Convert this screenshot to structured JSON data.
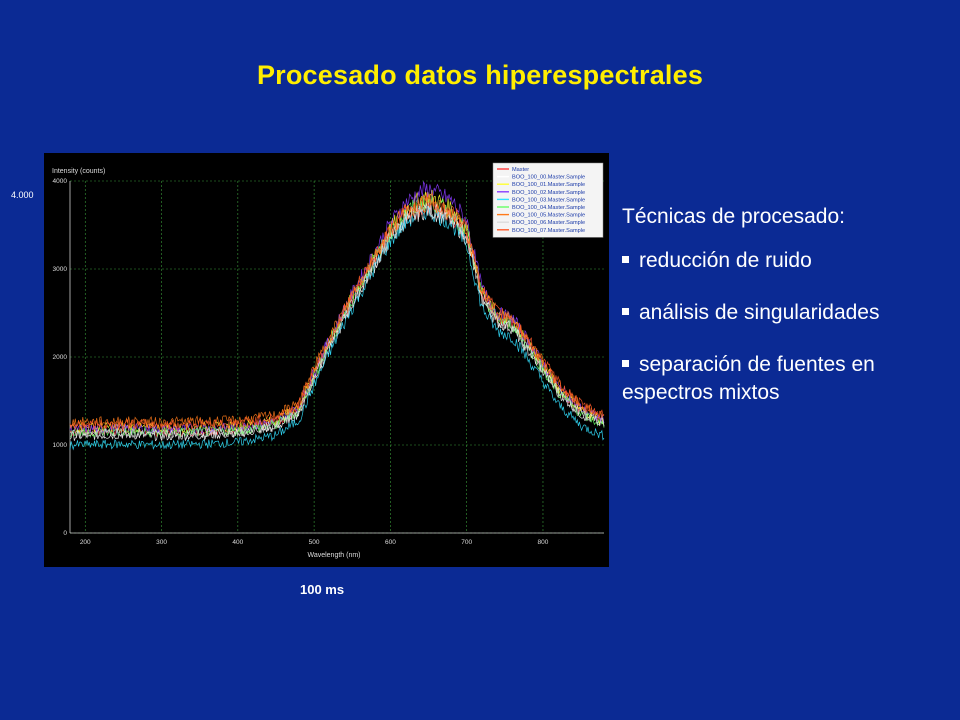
{
  "slide": {
    "title": "Procesado datos hiperespectrales",
    "ymark": "4.000",
    "caption": "100 ms",
    "bullets_heading": "Técnicas de procesado:",
    "bullets": [
      "reducción de ruido",
      "análisis de singularidades",
      "separación de fuentes en espectros mixtos"
    ],
    "colors": {
      "background": "#0b2a94",
      "title": "#ffee00",
      "text": "#ffffff"
    }
  },
  "chart_data": {
    "type": "line",
    "ylabel": "Intensity (counts)",
    "xlabel": "Wavelength (nm)",
    "xlim": [
      180,
      880
    ],
    "ylim": [
      0,
      4000
    ],
    "x_ticks": [
      200,
      300,
      400,
      500,
      600,
      700,
      800
    ],
    "y_ticks": [
      0,
      1000,
      2000,
      3000,
      4000
    ],
    "grid": true,
    "legend_position": "top-right",
    "x": [
      180,
      250,
      300,
      350,
      400,
      450,
      480,
      500,
      520,
      550,
      580,
      600,
      620,
      640,
      650,
      660,
      680,
      700,
      720,
      740,
      760,
      780,
      800,
      820,
      850,
      880
    ],
    "series": [
      {
        "name": "Master",
        "color": "#ff3b3b",
        "values": [
          1150,
          1170,
          1150,
          1160,
          1180,
          1250,
          1400,
          1800,
          2150,
          2650,
          3100,
          3400,
          3600,
          3700,
          3720,
          3680,
          3600,
          3400,
          2700,
          2450,
          2400,
          2150,
          1900,
          1650,
          1400,
          1280
        ]
      },
      {
        "name": "BOO_100_00.Master.Sample",
        "color": "#ffffff",
        "values": [
          1100,
          1120,
          1100,
          1110,
          1130,
          1200,
          1360,
          1750,
          2100,
          2600,
          3050,
          3350,
          3550,
          3650,
          3670,
          3630,
          3560,
          3350,
          2650,
          2400,
          2330,
          2080,
          1840,
          1600,
          1350,
          1230
        ]
      },
      {
        "name": "BOO_100_01.Master.Sample",
        "color": "#ffff33",
        "values": [
          1200,
          1200,
          1190,
          1200,
          1210,
          1280,
          1430,
          1830,
          2180,
          2690,
          3150,
          3460,
          3680,
          3800,
          3830,
          3790,
          3700,
          3480,
          2740,
          2480,
          2420,
          2170,
          1910,
          1650,
          1400,
          1270
        ]
      },
      {
        "name": "BOO_100_02.Master.Sample",
        "color": "#8a3bff",
        "values": [
          1180,
          1190,
          1180,
          1190,
          1200,
          1270,
          1430,
          1840,
          2200,
          2720,
          3200,
          3520,
          3750,
          3880,
          3910,
          3870,
          3780,
          3550,
          2780,
          2500,
          2440,
          2190,
          1920,
          1660,
          1410,
          1280
        ]
      },
      {
        "name": "BOO_100_03.Master.Sample",
        "color": "#33e0ff",
        "values": [
          1000,
          1010,
          1000,
          1010,
          1030,
          1110,
          1280,
          1680,
          2050,
          2560,
          3020,
          3320,
          3530,
          3640,
          3660,
          3620,
          3520,
          3280,
          2560,
          2300,
          2230,
          1980,
          1720,
          1460,
          1220,
          1100
        ]
      },
      {
        "name": "BOO_100_04.Master.Sample",
        "color": "#66ff66",
        "values": [
          1140,
          1150,
          1140,
          1150,
          1160,
          1230,
          1390,
          1790,
          2150,
          2660,
          3120,
          3420,
          3640,
          3750,
          3770,
          3730,
          3640,
          3420,
          2690,
          2430,
          2370,
          2120,
          1860,
          1600,
          1350,
          1220
        ]
      },
      {
        "name": "BOO_100_05.Master.Sample",
        "color": "#ff7a1a",
        "values": [
          1260,
          1270,
          1260,
          1270,
          1280,
          1340,
          1480,
          1880,
          2220,
          2710,
          3150,
          3440,
          3640,
          3730,
          3750,
          3710,
          3630,
          3430,
          2730,
          2480,
          2430,
          2180,
          1940,
          1690,
          1440,
          1320
        ]
      },
      {
        "name": "BOO_100_06.Master.Sample",
        "color": "#dcdcdc",
        "values": [
          1120,
          1140,
          1120,
          1130,
          1150,
          1220,
          1380,
          1770,
          2120,
          2620,
          3070,
          3370,
          3570,
          3670,
          3690,
          3650,
          3580,
          3380,
          2670,
          2420,
          2350,
          2100,
          1850,
          1600,
          1360,
          1240
        ]
      },
      {
        "name": "BOO_100_07.Master.Sample",
        "color": "#ff5a2a",
        "values": [
          1230,
          1240,
          1230,
          1240,
          1250,
          1310,
          1460,
          1860,
          2200,
          2700,
          3150,
          3450,
          3660,
          3760,
          3780,
          3740,
          3660,
          3460,
          2760,
          2510,
          2460,
          2210,
          1960,
          1710,
          1460,
          1340
        ]
      }
    ]
  }
}
